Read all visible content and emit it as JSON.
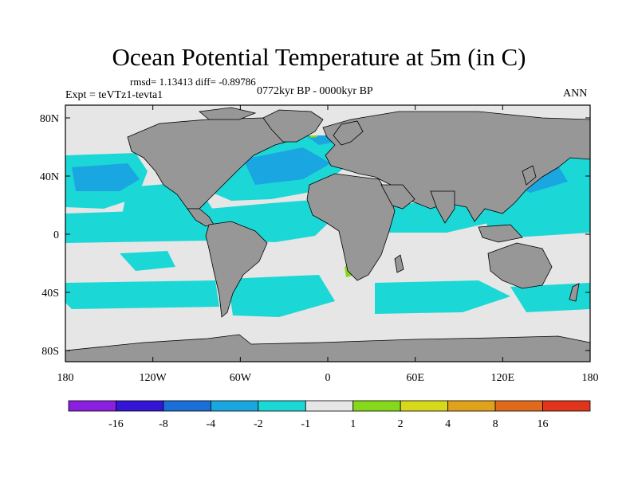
{
  "title": "Ocean Potential Temperature at 5m (in C)",
  "stats_line": "rmsd= 1.13413 diff= -0.89786",
  "experiment": "Expt = teVTz1-tevta1",
  "period": "0772kyr BP - 0000kyr BP",
  "season": "ANN",
  "axes": {
    "x_ticks": [
      "180",
      "120W",
      "60W",
      "0",
      "60E",
      "120E",
      "180"
    ],
    "y_ticks": [
      "80N",
      "40N",
      "0",
      "40S",
      "80S"
    ]
  },
  "colorbar": {
    "colors": [
      "#8a1fe0",
      "#3414d6",
      "#1b6fd9",
      "#1aa6e0",
      "#1bd8d6",
      "#e6e6e6",
      "#86d81b",
      "#d8d81b",
      "#e0a21b",
      "#e06a1b",
      "#e0341b"
    ],
    "labels": [
      "-16",
      "-8",
      "-4",
      "-2",
      "-1",
      "1",
      "2",
      "4",
      "8",
      "16"
    ]
  },
  "land_color": "#979797",
  "ocean_neutral_color": "#e6e6e6"
}
